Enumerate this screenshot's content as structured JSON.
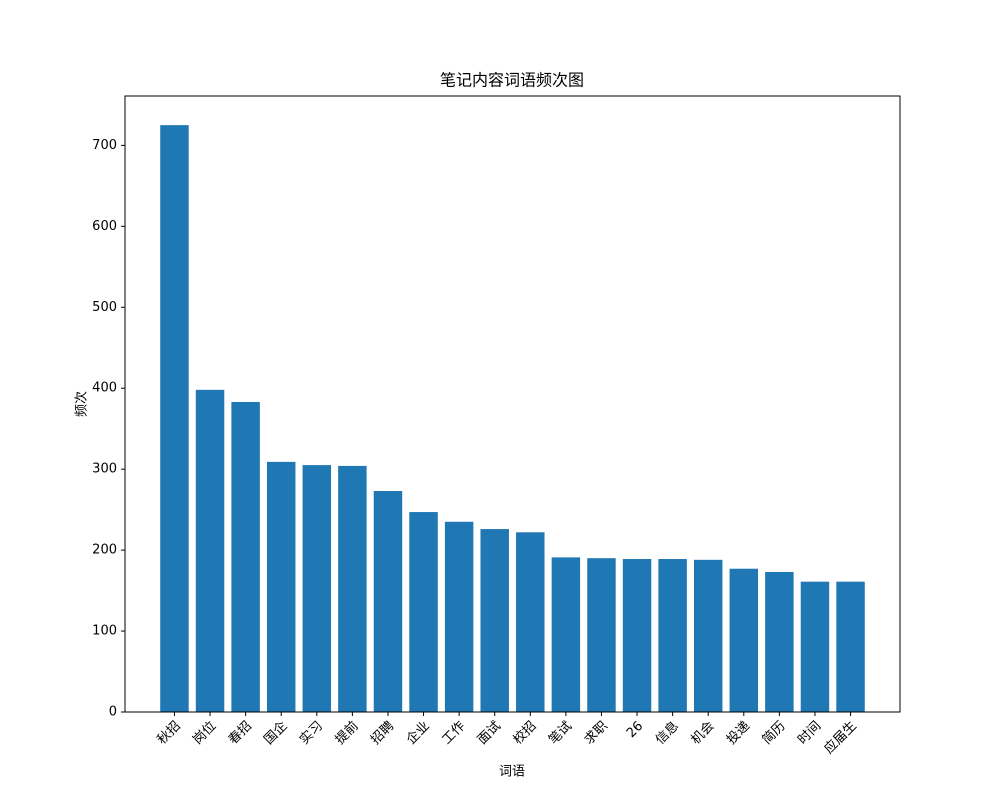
{
  "chart_data": {
    "type": "bar",
    "title": "笔记内容词语频次图",
    "x_label": "词语",
    "y_label": "频次",
    "categories": [
      "秋招",
      "岗位",
      "春招",
      "国企",
      "实习",
      "提前",
      "招聘",
      "企业",
      "工作",
      "面试",
      "校招",
      "笔试",
      "求职",
      "26",
      "信息",
      "机会",
      "投递",
      "简历",
      "时间",
      "应届生"
    ],
    "values": [
      725,
      398,
      383,
      309,
      305,
      304,
      273,
      247,
      235,
      226,
      222,
      191,
      190,
      189,
      189,
      188,
      177,
      173,
      161,
      161
    ],
    "color": "#1f77b4",
    "ylim": [
      0,
      761
    ],
    "yticks": [
      0,
      100,
      200,
      300,
      400,
      500,
      600,
      700
    ],
    "grid": false
  }
}
